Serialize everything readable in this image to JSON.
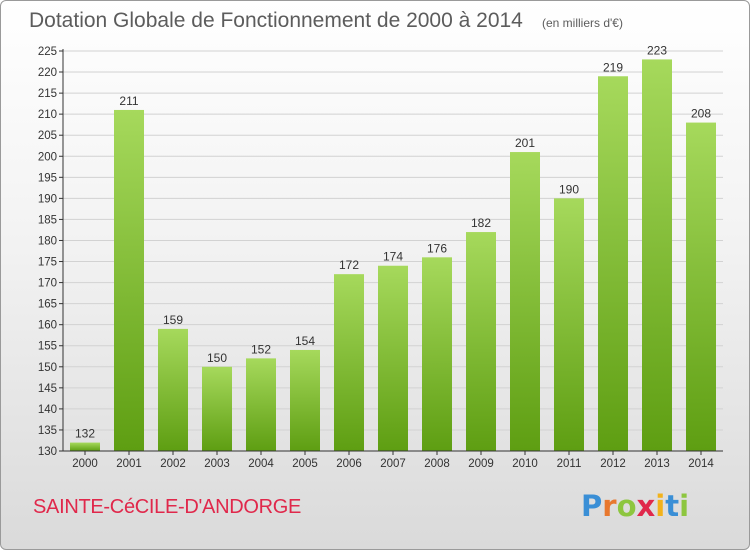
{
  "title": "Dotation Globale de Fonctionnement de 2000 à 2014",
  "subtitle": "(en milliers d'€)",
  "commune": "SAINTE-CéCILE-D'ANDORGE",
  "logo": {
    "letters": [
      {
        "char": "P",
        "color": "#3a8fd6"
      },
      {
        "char": "r",
        "color": "#e8782e"
      },
      {
        "char": "o",
        "color": "#8dc63f"
      },
      {
        "char": "x",
        "color": "#e0284b"
      },
      {
        "char": "i",
        "color": "#f2b21b"
      },
      {
        "char": "t",
        "color": "#3a8fd6"
      },
      {
        "char": "i",
        "color": "#8dc63f"
      }
    ]
  },
  "colors": {
    "bar_light": "#a6d95c",
    "bar_dark": "#5e9e12",
    "grid": "#d2d2d2",
    "axis": "#333333",
    "text": "#333333"
  },
  "chart_data": {
    "type": "bar",
    "categories": [
      "2000",
      "2001",
      "2002",
      "2003",
      "2004",
      "2005",
      "2006",
      "2007",
      "2008",
      "2009",
      "2010",
      "2011",
      "2012",
      "2013",
      "2014"
    ],
    "values": [
      132,
      211,
      159,
      150,
      152,
      154,
      172,
      174,
      176,
      182,
      201,
      190,
      219,
      223,
      208
    ],
    "ylim": [
      130,
      225
    ],
    "yticks": [
      130,
      135,
      140,
      145,
      150,
      155,
      160,
      165,
      170,
      175,
      180,
      185,
      190,
      195,
      200,
      205,
      210,
      215,
      220,
      225
    ],
    "grid": true,
    "data_labels": true
  }
}
